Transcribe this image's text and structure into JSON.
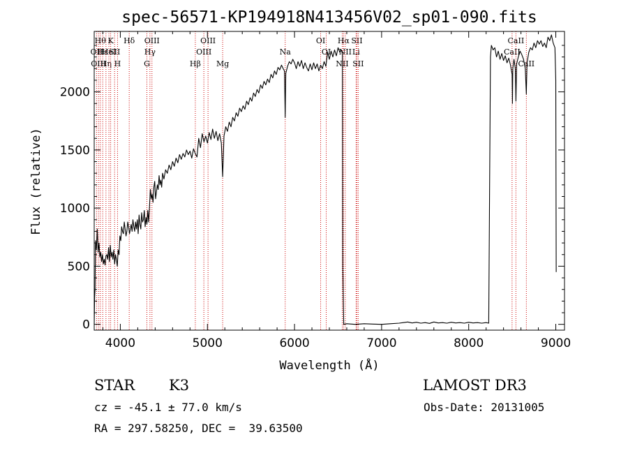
{
  "chart_data": {
    "type": "line",
    "title": "spec-56571-KP194918N413456V02_sp01-090.fits",
    "xlabel": "Wavelength (Å)",
    "ylabel": "Flux (relative)",
    "xlim": [
      3700,
      9100
    ],
    "ylim": [
      -50,
      2520
    ],
    "xticks": [
      4000,
      5000,
      6000,
      7000,
      8000,
      9000
    ],
    "yticks": [
      0,
      500,
      1000,
      1500,
      2000
    ],
    "series": [
      {
        "points": [
          [
            3700,
            0
          ],
          [
            3705,
            230
          ],
          [
            3710,
            300
          ],
          [
            3715,
            720
          ],
          [
            3725,
            640
          ],
          [
            3735,
            820
          ],
          [
            3745,
            620
          ],
          [
            3755,
            700
          ],
          [
            3765,
            580
          ],
          [
            3775,
            620
          ],
          [
            3785,
            540
          ],
          [
            3795,
            600
          ],
          [
            3805,
            520
          ],
          [
            3815,
            560
          ],
          [
            3825,
            510
          ],
          [
            3835,
            590
          ],
          [
            3845,
            600
          ],
          [
            3855,
            560
          ],
          [
            3865,
            660
          ],
          [
            3875,
            540
          ],
          [
            3885,
            680
          ],
          [
            3895,
            580
          ],
          [
            3905,
            620
          ],
          [
            3915,
            560
          ],
          [
            3925,
            640
          ],
          [
            3935,
            520
          ],
          [
            3945,
            600
          ],
          [
            3955,
            560
          ],
          [
            3965,
            500
          ],
          [
            3975,
            640
          ],
          [
            3985,
            600
          ],
          [
            3995,
            760
          ],
          [
            4005,
            720
          ],
          [
            4015,
            840
          ],
          [
            4025,
            800
          ],
          [
            4035,
            780
          ],
          [
            4045,
            880
          ],
          [
            4055,
            820
          ],
          [
            4065,
            760
          ],
          [
            4075,
            800
          ],
          [
            4085,
            880
          ],
          [
            4095,
            840
          ],
          [
            4105,
            780
          ],
          [
            4115,
            820
          ],
          [
            4125,
            860
          ],
          [
            4135,
            800
          ],
          [
            4145,
            900
          ],
          [
            4155,
            840
          ],
          [
            4165,
            800
          ],
          [
            4175,
            880
          ],
          [
            4185,
            820
          ],
          [
            4195,
            900
          ],
          [
            4205,
            780
          ],
          [
            4215,
            940
          ],
          [
            4225,
            860
          ],
          [
            4235,
            820
          ],
          [
            4245,
            960
          ],
          [
            4255,
            880
          ],
          [
            4265,
            900
          ],
          [
            4275,
            980
          ],
          [
            4285,
            840
          ],
          [
            4295,
            920
          ],
          [
            4305,
            860
          ],
          [
            4315,
            980
          ],
          [
            4325,
            880
          ],
          [
            4335,
            1020
          ],
          [
            4345,
            1160
          ],
          [
            4355,
            1080
          ],
          [
            4365,
            1120
          ],
          [
            4375,
            1050
          ],
          [
            4385,
            1180
          ],
          [
            4395,
            1230
          ],
          [
            4405,
            1080
          ],
          [
            4415,
            1140
          ],
          [
            4425,
            1200
          ],
          [
            4435,
            1160
          ],
          [
            4445,
            1280
          ],
          [
            4455,
            1200
          ],
          [
            4465,
            1240
          ],
          [
            4475,
            1180
          ],
          [
            4485,
            1300
          ],
          [
            4500,
            1250
          ],
          [
            4520,
            1330
          ],
          [
            4540,
            1300
          ],
          [
            4560,
            1370
          ],
          [
            4580,
            1330
          ],
          [
            4600,
            1400
          ],
          [
            4620,
            1360
          ],
          [
            4640,
            1430
          ],
          [
            4660,
            1390
          ],
          [
            4680,
            1460
          ],
          [
            4700,
            1420
          ],
          [
            4720,
            1470
          ],
          [
            4740,
            1440
          ],
          [
            4760,
            1500
          ],
          [
            4780,
            1460
          ],
          [
            4800,
            1490
          ],
          [
            4820,
            1430
          ],
          [
            4840,
            1510
          ],
          [
            4860,
            1470
          ],
          [
            4880,
            1440
          ],
          [
            4900,
            1600
          ],
          [
            4920,
            1520
          ],
          [
            4940,
            1640
          ],
          [
            4960,
            1570
          ],
          [
            4980,
            1620
          ],
          [
            5000,
            1560
          ],
          [
            5020,
            1650
          ],
          [
            5040,
            1590
          ],
          [
            5060,
            1680
          ],
          [
            5080,
            1600
          ],
          [
            5100,
            1660
          ],
          [
            5120,
            1580
          ],
          [
            5140,
            1640
          ],
          [
            5160,
            1560
          ],
          [
            5175,
            1270
          ],
          [
            5190,
            1620
          ],
          [
            5210,
            1700
          ],
          [
            5230,
            1660
          ],
          [
            5250,
            1740
          ],
          [
            5270,
            1700
          ],
          [
            5290,
            1780
          ],
          [
            5310,
            1750
          ],
          [
            5330,
            1820
          ],
          [
            5350,
            1790
          ],
          [
            5370,
            1860
          ],
          [
            5390,
            1830
          ],
          [
            5410,
            1880
          ],
          [
            5430,
            1850
          ],
          [
            5450,
            1920
          ],
          [
            5470,
            1890
          ],
          [
            5490,
            1950
          ],
          [
            5510,
            1920
          ],
          [
            5530,
            1990
          ],
          [
            5550,
            1960
          ],
          [
            5570,
            2020
          ],
          [
            5590,
            1990
          ],
          [
            5610,
            2060
          ],
          [
            5630,
            2030
          ],
          [
            5650,
            2090
          ],
          [
            5670,
            2060
          ],
          [
            5690,
            2110
          ],
          [
            5710,
            2080
          ],
          [
            5730,
            2150
          ],
          [
            5750,
            2120
          ],
          [
            5770,
            2180
          ],
          [
            5790,
            2150
          ],
          [
            5810,
            2210
          ],
          [
            5830,
            2190
          ],
          [
            5850,
            2230
          ],
          [
            5870,
            2200
          ],
          [
            5885,
            2180
          ],
          [
            5893,
            1780
          ],
          [
            5900,
            2160
          ],
          [
            5920,
            2220
          ],
          [
            5940,
            2260
          ],
          [
            5960,
            2240
          ],
          [
            5980,
            2280
          ],
          [
            6000,
            2250
          ],
          [
            6020,
            2200
          ],
          [
            6040,
            2260
          ],
          [
            6060,
            2220
          ],
          [
            6080,
            2270
          ],
          [
            6100,
            2200
          ],
          [
            6120,
            2250
          ],
          [
            6140,
            2210
          ],
          [
            6160,
            2180
          ],
          [
            6180,
            2240
          ],
          [
            6200,
            2190
          ],
          [
            6220,
            2250
          ],
          [
            6240,
            2200
          ],
          [
            6260,
            2240
          ],
          [
            6280,
            2180
          ],
          [
            6300,
            2230
          ],
          [
            6320,
            2200
          ],
          [
            6340,
            2260
          ],
          [
            6360,
            2220
          ],
          [
            6380,
            2340
          ],
          [
            6400,
            2280
          ],
          [
            6420,
            2350
          ],
          [
            6440,
            2300
          ],
          [
            6460,
            2360
          ],
          [
            6480,
            2310
          ],
          [
            6500,
            2380
          ],
          [
            6520,
            2340
          ],
          [
            6540,
            2360
          ],
          [
            6550,
            2320
          ],
          [
            6555,
            500
          ],
          [
            6560,
            220
          ],
          [
            6565,
            0
          ],
          [
            6600,
            5
          ],
          [
            6700,
            0
          ],
          [
            6800,
            5
          ],
          [
            6900,
            2
          ],
          [
            7000,
            0
          ],
          [
            7100,
            5
          ],
          [
            7200,
            10
          ],
          [
            7250,
            15
          ],
          [
            7300,
            20
          ],
          [
            7350,
            12
          ],
          [
            7400,
            18
          ],
          [
            7450,
            10
          ],
          [
            7500,
            15
          ],
          [
            7550,
            8
          ],
          [
            7600,
            20
          ],
          [
            7650,
            12
          ],
          [
            7700,
            15
          ],
          [
            7750,
            10
          ],
          [
            7800,
            18
          ],
          [
            7850,
            12
          ],
          [
            7900,
            15
          ],
          [
            7950,
            10
          ],
          [
            8000,
            18
          ],
          [
            8050,
            12
          ],
          [
            8100,
            15
          ],
          [
            8150,
            10
          ],
          [
            8200,
            15
          ],
          [
            8230,
            10
          ],
          [
            8240,
            1200
          ],
          [
            8250,
            2300
          ],
          [
            8260,
            2400
          ],
          [
            8280,
            2360
          ],
          [
            8300,
            2380
          ],
          [
            8320,
            2300
          ],
          [
            8340,
            2350
          ],
          [
            8360,
            2280
          ],
          [
            8380,
            2330
          ],
          [
            8400,
            2270
          ],
          [
            8420,
            2310
          ],
          [
            8440,
            2250
          ],
          [
            8460,
            2290
          ],
          [
            8480,
            2230
          ],
          [
            8498,
            2150
          ],
          [
            8502,
            1900
          ],
          [
            8506,
            2200
          ],
          [
            8520,
            2280
          ],
          [
            8535,
            2200
          ],
          [
            8542,
            1920
          ],
          [
            8550,
            2240
          ],
          [
            8570,
            2300
          ],
          [
            8590,
            2350
          ],
          [
            8610,
            2320
          ],
          [
            8630,
            2280
          ],
          [
            8650,
            2200
          ],
          [
            8662,
            1980
          ],
          [
            8670,
            2250
          ],
          [
            8690,
            2340
          ],
          [
            8710,
            2380
          ],
          [
            8730,
            2360
          ],
          [
            8750,
            2420
          ],
          [
            8770,
            2380
          ],
          [
            8790,
            2440
          ],
          [
            8810,
            2410
          ],
          [
            8830,
            2440
          ],
          [
            8850,
            2390
          ],
          [
            8870,
            2420
          ],
          [
            8890,
            2380
          ],
          [
            8910,
            2470
          ],
          [
            8930,
            2440
          ],
          [
            8950,
            2490
          ],
          [
            8970,
            2420
          ],
          [
            8990,
            2380
          ],
          [
            9000,
            2100
          ],
          [
            9005,
            450
          ]
        ]
      }
    ],
    "line_markers": [
      {
        "w": 3727,
        "label": "OII",
        "row": 2
      },
      {
        "w": 3750,
        "label": "OIII",
        "row": 3
      },
      {
        "w": 3770,
        "label": "Hθ",
        "row": 1
      },
      {
        "w": 3798,
        "label": "Hε",
        "row": 2
      },
      {
        "w": 3835,
        "label": "Hη",
        "row": 3
      },
      {
        "w": 3869,
        "label": "HeI",
        "row": 2
      },
      {
        "w": 3889,
        "label": "K",
        "row": 1
      },
      {
        "w": 3934,
        "label": "SII",
        "row": 2
      },
      {
        "w": 3968,
        "label": "H",
        "row": 3
      },
      {
        "w": 4102,
        "label": "Hδ",
        "row": 1
      },
      {
        "w": 4305,
        "label": "G",
        "row": 3
      },
      {
        "w": 4340,
        "label": "Hγ",
        "row": 2
      },
      {
        "w": 4363,
        "label": "OIII",
        "row": 1
      },
      {
        "w": 4861,
        "label": "Hβ",
        "row": 3
      },
      {
        "w": 4959,
        "label": "OIII",
        "row": 2
      },
      {
        "w": 5007,
        "label": "OIII",
        "row": 1
      },
      {
        "w": 5175,
        "label": "Mg",
        "row": 3
      },
      {
        "w": 5893,
        "label": "Na",
        "row": 2
      },
      {
        "w": 6300,
        "label": "OI",
        "row": 1
      },
      {
        "w": 6364,
        "label": "OI",
        "row": 2
      },
      {
        "w": 6548,
        "label": "NII",
        "row": 3
      },
      {
        "w": 6563,
        "label": "Hα",
        "row": 1
      },
      {
        "w": 6583,
        "label": "NII",
        "row": 2
      },
      {
        "w": 6707,
        "label": "Li",
        "row": 2
      },
      {
        "w": 6716,
        "label": "SII",
        "row": 1
      },
      {
        "w": 6731,
        "label": "SII",
        "row": 3
      },
      {
        "w": 8498,
        "label": "CaII",
        "row": 2
      },
      {
        "w": 8542,
        "label": "CaII",
        "row": 1
      },
      {
        "w": 8662,
        "label": "CaII",
        "row": 3
      }
    ]
  },
  "info": {
    "class_label": "STAR",
    "subclass_label": "K3",
    "survey_label": "LAMOST DR3",
    "cz_text": "cz = -45.1 ± 77.0 km/s",
    "obs_date_text": "Obs-Date: 20131005",
    "radec_text": "RA = 297.58250, DEC =  39.63500"
  }
}
